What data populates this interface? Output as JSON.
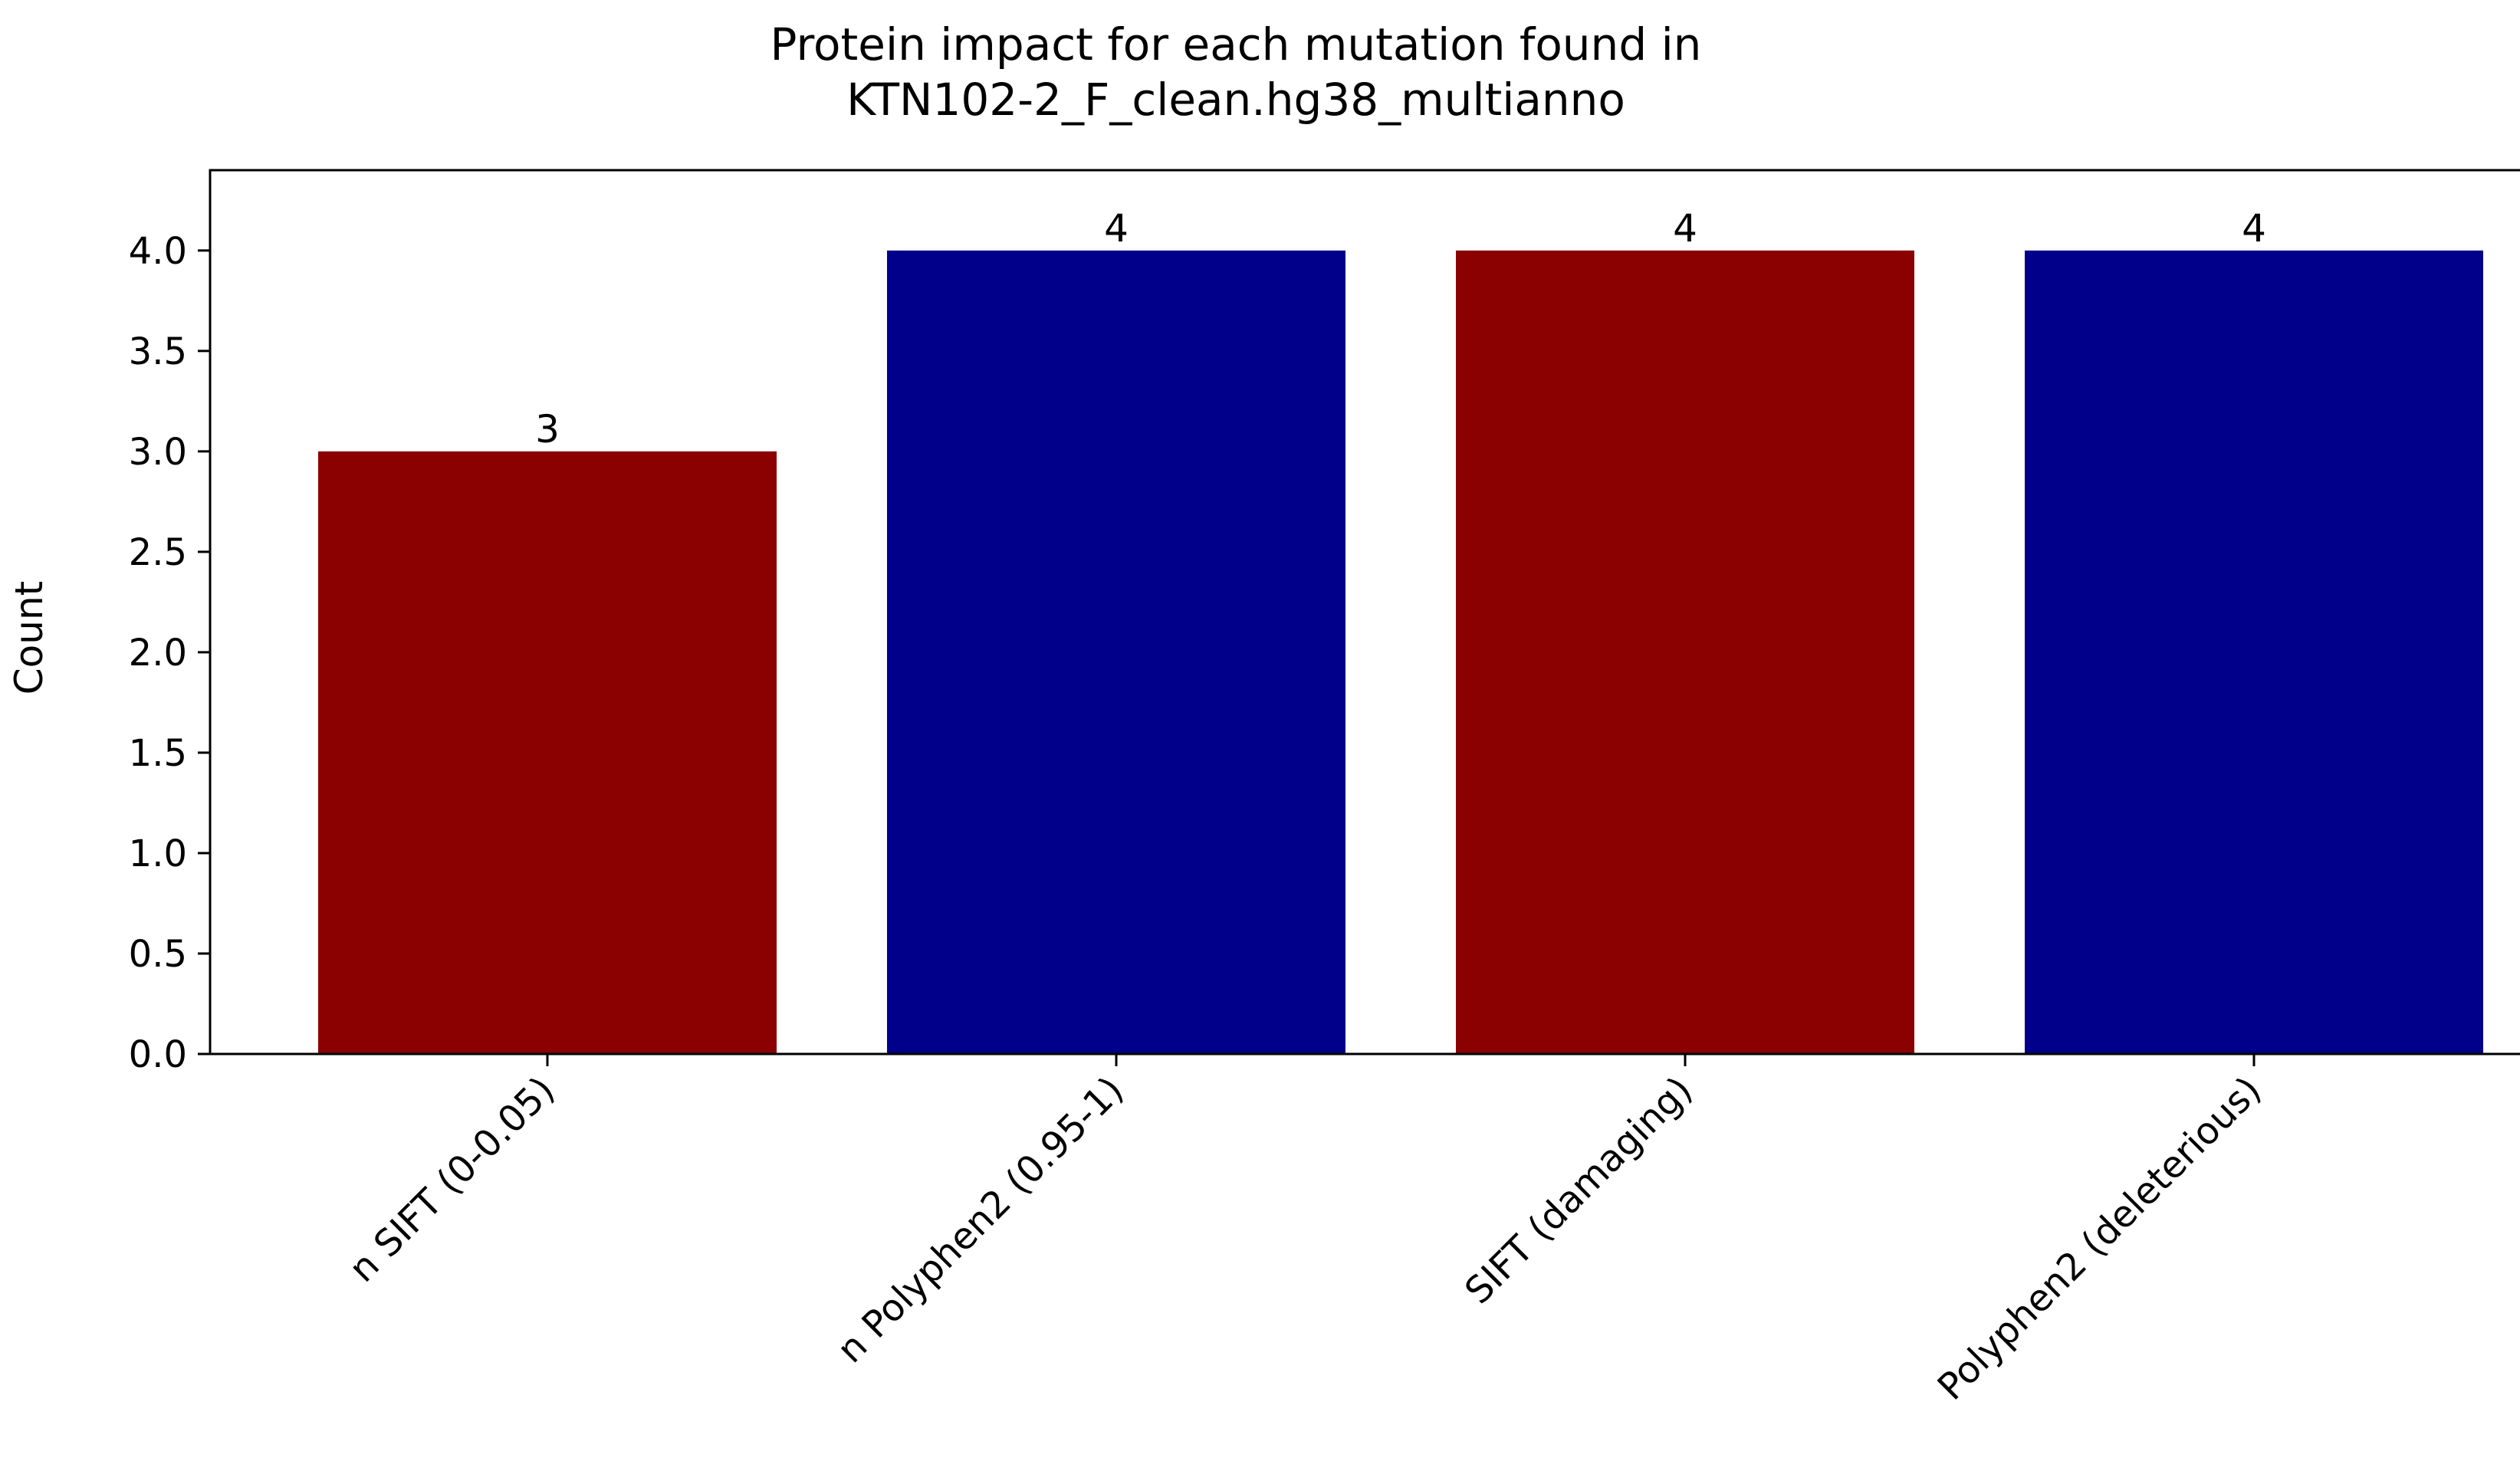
{
  "chart_data": {
    "type": "bar",
    "title": "Protein impact for each mutation found in\nKTN102-2_F_clean.hg38_multianno",
    "title_lines": [
      "Protein impact for each mutation found in",
      "KTN102-2_F_clean.hg38_multianno"
    ],
    "xlabel": "",
    "ylabel": "Count",
    "categories": [
      "n SIFT (0-0.05)",
      "n Polyphen2 (0.95-1)",
      "SIFT (damaging)",
      "Polyphen2 (deleterious)"
    ],
    "values": [
      3,
      4,
      4,
      4
    ],
    "data_labels": [
      "3",
      "4",
      "4",
      "4"
    ],
    "bar_colors": [
      "#8b0000",
      "#00008b",
      "#8b0000",
      "#00008b"
    ],
    "ylim": [
      0,
      4.4
    ],
    "yticks": [
      0.0,
      0.5,
      1.0,
      1.5,
      2.0,
      2.5,
      3.0,
      3.5,
      4.0
    ],
    "ytick_labels": [
      "0.0",
      "0.5",
      "1.0",
      "1.5",
      "2.0",
      "2.5",
      "3.0",
      "3.5",
      "4.0"
    ],
    "grid": false,
    "legend": "none"
  }
}
